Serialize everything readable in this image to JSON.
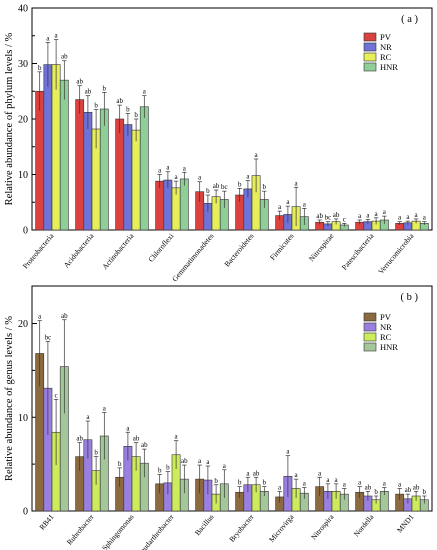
{
  "colors": {
    "PV_a": "#d9423f",
    "NR_a": "#6f72d6",
    "RC_a": "#e6ef5a",
    "HNR_a": "#8fcf97",
    "PV_b": "#8b6a3f",
    "NR_b": "#9b7fe0",
    "RC_b": "#cdec5c",
    "HNR_b": "#a4c79a"
  },
  "chart_data": [
    {
      "type": "bar",
      "panel_label": "( a )",
      "ylabel": "Relative abundance of phylum levels / %",
      "ylim": [
        0,
        40
      ],
      "yticks": [
        "0",
        "10",
        "20",
        "30",
        "40"
      ],
      "categories": [
        "Proteobacteria",
        "Acidobacteria",
        "Actinobacteria",
        "Chloroflexi",
        "Gemmatimonadetes",
        "Bacteroidetes",
        "Firmicutes",
        "Nitrospirae",
        "Patescibacteria",
        "Verrucomicrobia"
      ],
      "series": [
        {
          "name": "PV",
          "values": [
            25,
            23.5,
            20,
            8.8,
            6.9,
            6.3,
            2.6,
            1.4,
            1.4,
            1.2
          ],
          "errors": [
            3.5,
            2.5,
            2.5,
            1.2,
            1.8,
            1.2,
            0.8,
            0.4,
            0.4,
            0.3
          ],
          "letters": [
            "b",
            "ab",
            "ab",
            "a",
            "a",
            "b",
            "a",
            "ab",
            "a",
            "a"
          ]
        },
        {
          "name": "NR",
          "values": [
            29.8,
            21.2,
            19,
            9,
            4.8,
            7.4,
            2.8,
            1.1,
            1.5,
            1.3
          ],
          "errors": [
            4,
            3,
            2,
            1.5,
            1.5,
            1.5,
            1.5,
            0.4,
            0.4,
            0.3
          ],
          "letters": [
            "a",
            "ab",
            "b",
            "a",
            "b",
            "a",
            "a",
            "bc",
            "a",
            "a"
          ]
        },
        {
          "name": "RC",
          "values": [
            29.8,
            18.2,
            18,
            7.6,
            6,
            9.8,
            4.2,
            1.5,
            1.6,
            1.6
          ],
          "errors": [
            4.5,
            3.5,
            2,
            1.2,
            1.2,
            3,
            3.5,
            0.5,
            0.6,
            0.4
          ],
          "letters": [
            "a",
            "b",
            "b",
            "a",
            "ab",
            "a",
            "a",
            "ab",
            "a",
            "a"
          ]
        },
        {
          "name": "HNR",
          "values": [
            27,
            21.8,
            22.2,
            9.2,
            5.5,
            5.5,
            2.4,
            0.9,
            1.8,
            1.2
          ],
          "errors": [
            3.5,
            3,
            2,
            1.2,
            1.5,
            1.5,
            1.5,
            0.3,
            0.7,
            0.3
          ],
          "letters": [
            "ab",
            "b",
            "a",
            "a",
            "bc",
            "b",
            "a",
            "c",
            "a",
            "a"
          ]
        }
      ]
    },
    {
      "type": "bar",
      "panel_label": "( b )",
      "ylabel": "Relative abundance of genus levels / %",
      "ylim": [
        0,
        24
      ],
      "yticks": [
        "0",
        "10",
        "20"
      ],
      "categories": [
        "RB41",
        "Rubrobacter",
        "Sphingomonas",
        "Pseudarthrobacter",
        "Bacillus",
        "Bryobacter",
        "Microvirga",
        "Nitrospira",
        "Nordella",
        "MND1"
      ],
      "series": [
        {
          "name": "PV",
          "values": [
            16.8,
            5.8,
            3.6,
            2.9,
            3.4,
            2,
            1.5,
            2.6,
            2,
            1.8
          ],
          "errors": [
            3.5,
            1.5,
            1,
            1,
            1.5,
            0.6,
            0.6,
            1,
            0.6,
            0.6
          ],
          "letters": [
            "a",
            "ab",
            "b",
            "b",
            "a",
            "b",
            "a",
            "a",
            "a",
            "a"
          ]
        },
        {
          "name": "NR",
          "values": [
            13.1,
            7.6,
            6.9,
            3,
            3.3,
            2.8,
            3.7,
            2.1,
            1.6,
            1.3
          ],
          "errors": [
            5,
            2,
            1.5,
            1.2,
            1.5,
            0.8,
            2.2,
            0.8,
            0.5,
            0.5
          ],
          "letters": [
            "bc",
            "a",
            "a",
            "b",
            "a",
            "a",
            "a",
            "a",
            "ab",
            "ab"
          ]
        },
        {
          "name": "RC",
          "values": [
            8.4,
            4.3,
            5.8,
            6,
            1.8,
            2.8,
            2.4,
            2.1,
            1.2,
            1.6
          ],
          "errors": [
            3.5,
            1.5,
            1.5,
            1.5,
            1,
            0.8,
            1,
            0.8,
            0.4,
            0.5
          ],
          "letters": [
            "c",
            "b",
            "ab",
            "a",
            "b",
            "ab",
            "a",
            "a",
            "b",
            "ab"
          ]
        },
        {
          "name": "HNR",
          "values": [
            15.4,
            8,
            5.1,
            3.4,
            2.9,
            2.1,
            1.9,
            1.8,
            2.1,
            1.2
          ],
          "errors": [
            5,
            2.5,
            1.5,
            1.5,
            1.5,
            0.5,
            0.6,
            0.6,
            0.4,
            0.4
          ],
          "letters": [
            "ab",
            "a",
            "ab",
            "ab",
            "a",
            "b",
            "a",
            "a",
            "a",
            "b"
          ]
        }
      ]
    }
  ]
}
